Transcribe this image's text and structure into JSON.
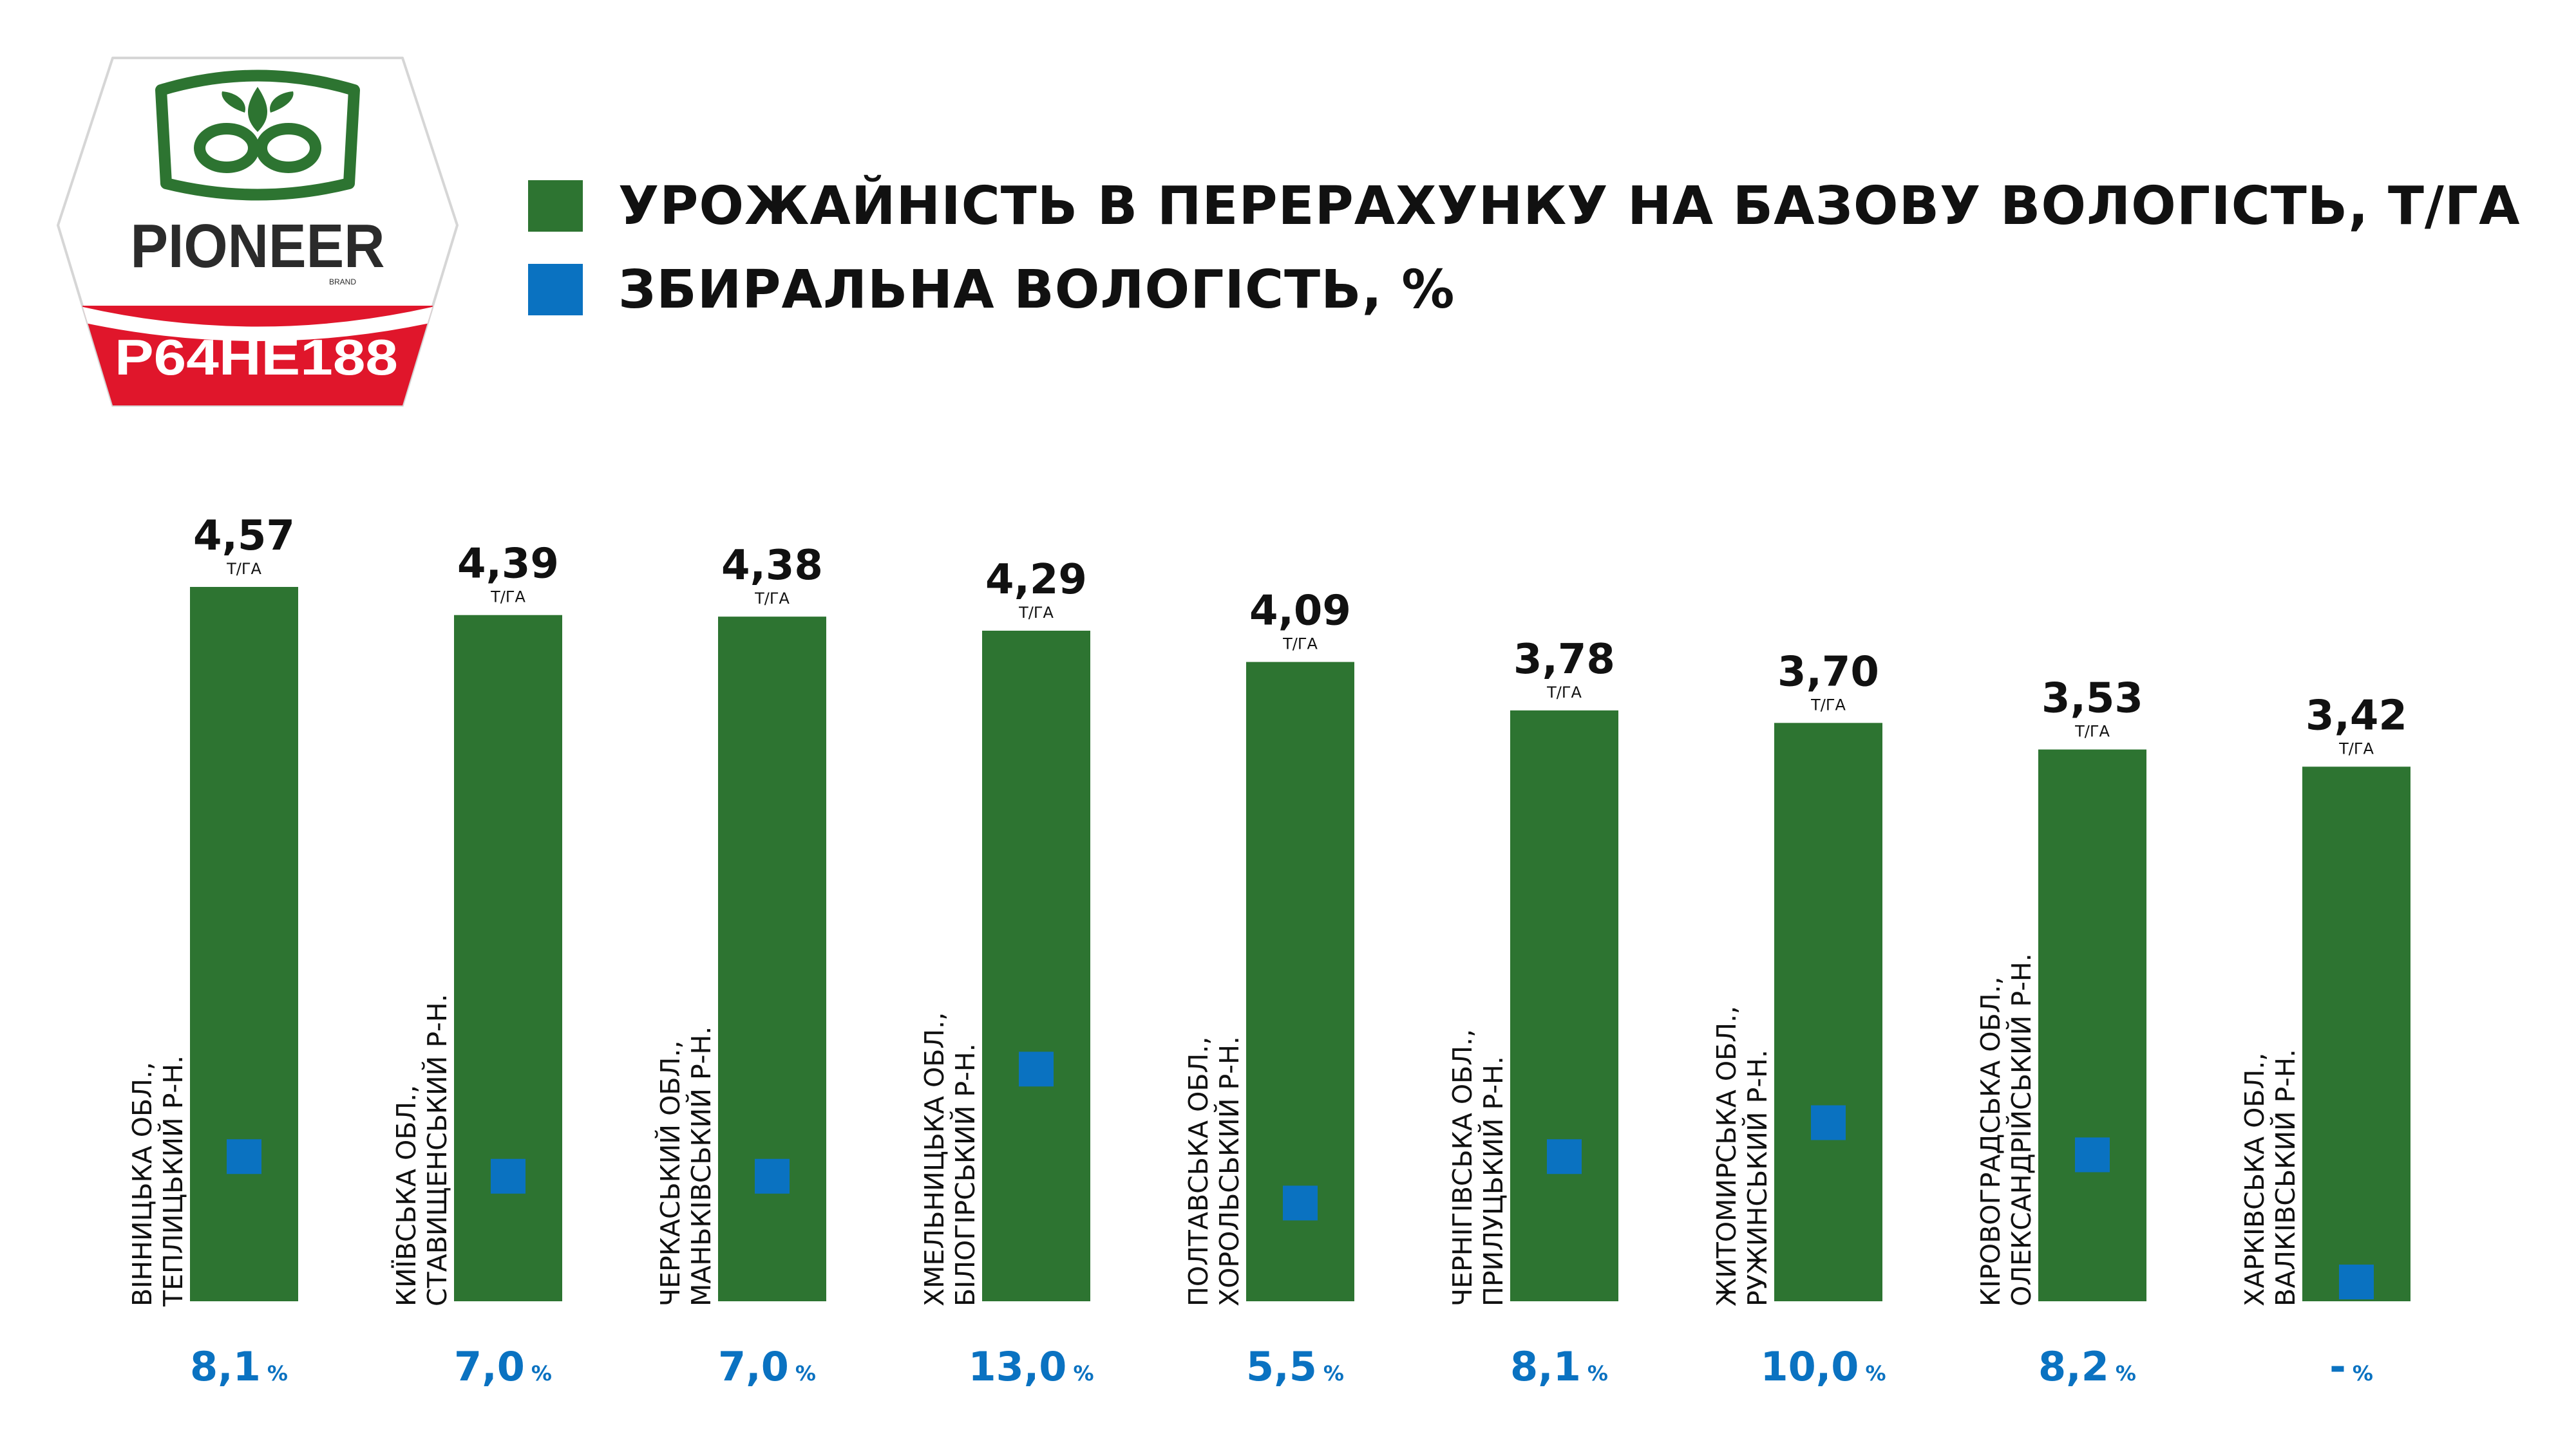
{
  "logo": {
    "brand": "PIONEER",
    "brand_sub": "BRAND",
    "hybrid": "P64HE188"
  },
  "colors": {
    "bar": "#2d7431",
    "marker": "#0a72c1",
    "moisture_text": "#0a72c1",
    "logo_red": "#e0162b",
    "logo_green": "#2d7431"
  },
  "legend": [
    {
      "label": "УРОЖАЙНІСТЬ В ПЕРЕРАХУНКУ НА БАЗОВУ ВОЛОГІСТЬ, Т/ГА",
      "color": "#2d7431",
      "shape": "square"
    },
    {
      "label": "ЗБИРАЛЬНА ВОЛОГІСТЬ, %",
      "color": "#0a72c1",
      "shape": "square"
    }
  ],
  "chart_data": {
    "type": "bar",
    "legend_position": "top",
    "grid": false,
    "ylim": [
      0,
      4.57
    ],
    "moisture_ylim": [
      0,
      40
    ],
    "unit_yield": "Т/ГА",
    "unit_moisture": "%",
    "categories": [
      "ВІННИЦЬКА ОБЛ., ТЕПЛИЦЬКИЙ Р-Н.",
      "КИЇВСЬКА ОБЛ., СТАВИЩЕНСЬКИЙ Р-Н.",
      "ЧЕРКАСЬКИЙ ОБЛ., МАНЬКІВСЬКИЙ Р-Н.",
      "ХМЕЛЬНИЦЬКА ОБЛ., БІЛОГІРСЬКИЙ Р-Н.",
      "ПОЛТАВСЬКА ОБЛ., ХОРОЛЬСЬКИЙ Р-Н.",
      "ЧЕРНІГІВСЬКА ОБЛ., ПРИЛУЦЬКИЙ Р-Н.",
      "ЖИТОМИРСЬКА ОБЛ., РУЖИНСЬКИЙ Р-Н.",
      "КІРОВОГРАДСЬКА  ОБЛ., ОЛЕКСАНДРІЙСЬКИЙ Р-Н.",
      "ХАРКІВСЬКА ОБЛ., ВАЛКІВСЬКИЙ Р-Н."
    ],
    "category_lines": [
      [
        "ВІННИЦЬКА ОБЛ.,",
        "ТЕПЛИЦЬКИЙ Р-Н."
      ],
      [
        "КИЇВСЬКА ОБЛ.,",
        "СТАВИЩЕНСЬКИЙ Р-Н."
      ],
      [
        "ЧЕРКАСЬКИЙ ОБЛ.,",
        "МАНЬКІВСЬКИЙ Р-Н."
      ],
      [
        "ХМЕЛЬНИЦЬКА ОБЛ.,",
        "БІЛОГІРСЬКИЙ Р-Н."
      ],
      [
        "ПОЛТАВСЬКА ОБЛ.,",
        "ХОРОЛЬСЬКИЙ Р-Н."
      ],
      [
        "ЧЕРНІГІВСЬКА ОБЛ.,",
        "ПРИЛУЦЬКИЙ Р-Н."
      ],
      [
        "ЖИТОМИРСЬКА ОБЛ.,",
        "РУЖИНСЬКИЙ Р-Н."
      ],
      [
        "КІРОВОГРАДСЬКА  ОБЛ.,",
        "ОЛЕКСАНДРІЙСЬКИЙ Р-Н."
      ],
      [
        "ХАРКІВСЬКА ОБЛ.,",
        "ВАЛКІВСЬКИЙ Р-Н."
      ]
    ],
    "series": [
      {
        "name": "УРОЖАЙНІСТЬ В ПЕРЕРАХУНКУ НА БАЗОВУ ВОЛОГІСТЬ, Т/ГА",
        "type": "bar",
        "values": [
          4.57,
          4.39,
          4.38,
          4.29,
          4.09,
          3.78,
          3.7,
          3.53,
          3.42
        ],
        "labels": [
          "4,57",
          "4,39",
          "4,38",
          "4,29",
          "4,09",
          "3,78",
          "3,70",
          "3,53",
          "3,42"
        ]
      },
      {
        "name": "ЗБИРАЛЬНА ВОЛОГІСТЬ, %",
        "type": "scatter",
        "values": [
          8.1,
          7.0,
          7.0,
          13.0,
          5.5,
          8.1,
          10.0,
          8.2,
          null
        ],
        "labels": [
          "8,1",
          "7,0",
          "7,0",
          "13,0",
          "5,5",
          "8,1",
          "10,0",
          "8,2",
          "-"
        ]
      }
    ]
  }
}
